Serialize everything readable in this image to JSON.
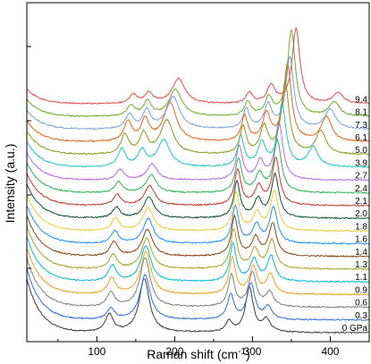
{
  "chart_data": {
    "type": "line",
    "title": "",
    "xlabel": "Raman shift (cm",
    "xlabel_sup": "-1",
    "xlabel_close": ")",
    "ylabel": "Intensity (a.u.)",
    "xlim": [
      10,
      450
    ],
    "x_ticks": [
      100,
      200,
      300,
      400
    ],
    "x_tick_labels": [
      "100",
      "200",
      "300",
      "400"
    ],
    "grid": false,
    "series": [
      {
        "name": "0 GPa",
        "color": "#3c3c3c",
        "offset": 0,
        "peaks": [
          [
            116,
            20,
            6
          ],
          [
            161,
            60,
            8
          ],
          [
            270,
            12,
            5
          ],
          [
            296,
            50,
            6
          ],
          [
            318,
            14,
            6
          ]
        ]
      },
      {
        "name": "0.3",
        "color": "#2f6fd6",
        "offset": 1,
        "peaks": [
          [
            118,
            12,
            6
          ],
          [
            162,
            50,
            8
          ],
          [
            272,
            28,
            5
          ],
          [
            298,
            40,
            6
          ],
          [
            320,
            14,
            6
          ]
        ]
      },
      {
        "name": "0.6",
        "color": "#7f7f7f",
        "offset": 2,
        "peaks": [
          [
            118,
            16,
            6
          ],
          [
            162,
            55,
            8
          ],
          [
            273,
            35,
            5
          ],
          [
            300,
            38,
            6
          ],
          [
            322,
            16,
            6
          ]
        ]
      },
      {
        "name": "0.9",
        "color": "#e8a317",
        "offset": 3,
        "peaks": [
          [
            119,
            18,
            6
          ],
          [
            163,
            48,
            8
          ],
          [
            274,
            40,
            5
          ],
          [
            301,
            30,
            6
          ],
          [
            323,
            22,
            6
          ]
        ]
      },
      {
        "name": "1.1",
        "color": "#00bcd4",
        "offset": 4,
        "peaks": [
          [
            120,
            18,
            6
          ],
          [
            163,
            40,
            8
          ],
          [
            275,
            42,
            5
          ],
          [
            302,
            24,
            6
          ],
          [
            324,
            28,
            6
          ]
        ]
      },
      {
        "name": "1.3",
        "color": "#a3a329",
        "offset": 5,
        "peaks": [
          [
            121,
            16,
            6
          ],
          [
            164,
            34,
            8
          ],
          [
            276,
            44,
            5
          ],
          [
            303,
            22,
            6
          ],
          [
            325,
            32,
            6
          ]
        ]
      },
      {
        "name": "1.4",
        "color": "#8b4513",
        "offset": 6,
        "peaks": [
          [
            122,
            16,
            6
          ],
          [
            165,
            30,
            8
          ],
          [
            277,
            44,
            5
          ],
          [
            304,
            20,
            6
          ],
          [
            326,
            36,
            6
          ]
        ]
      },
      {
        "name": "1.6",
        "color": "#1e90ff",
        "offset": 7,
        "peaks": [
          [
            123,
            14,
            6
          ],
          [
            166,
            28,
            8
          ],
          [
            278,
            42,
            5
          ],
          [
            305,
            20,
            6
          ],
          [
            327,
            40,
            6
          ]
        ]
      },
      {
        "name": "1.8",
        "color": "#e9cc34",
        "offset": 8,
        "peaks": [
          [
            124,
            14,
            6
          ],
          [
            166,
            26,
            8
          ],
          [
            279,
            42,
            5
          ],
          [
            306,
            20,
            6
          ],
          [
            328,
            44,
            6
          ]
        ]
      },
      {
        "name": "2.0",
        "color": "#0f5132",
        "offset": 9,
        "peaks": [
          [
            125,
            12,
            6
          ],
          [
            167,
            24,
            8
          ],
          [
            280,
            40,
            5
          ],
          [
            307,
            20,
            6
          ],
          [
            329,
            48,
            6
          ]
        ]
      },
      {
        "name": "2.1",
        "color": "#c0392b",
        "offset": 10,
        "peaks": [
          [
            126,
            12,
            6
          ],
          [
            168,
            22,
            8
          ],
          [
            281,
            40,
            5
          ],
          [
            308,
            20,
            6
          ],
          [
            330,
            52,
            6
          ]
        ]
      },
      {
        "name": "2.4",
        "color": "#2fb35a",
        "offset": 11,
        "peaks": [
          [
            128,
            12,
            6
          ],
          [
            170,
            20,
            8
          ],
          [
            282,
            38,
            5
          ],
          [
            309,
            20,
            6
          ],
          [
            332,
            58,
            6
          ]
        ]
      },
      {
        "name": "2.7",
        "color": "#b56ce0",
        "offset": 12,
        "peaks": [
          [
            130,
            12,
            6
          ],
          [
            171,
            18,
            8
          ],
          [
            283,
            38,
            5
          ],
          [
            310,
            20,
            6
          ],
          [
            334,
            64,
            6
          ]
        ]
      },
      {
        "name": "3.9",
        "color": "#1cc7c7",
        "offset": 13,
        "peaks": [
          [
            132,
            20,
            6
          ],
          [
            158,
            18,
            6
          ],
          [
            186,
            30,
            10
          ],
          [
            285,
            34,
            5
          ],
          [
            312,
            26,
            6
          ],
          [
            338,
            70,
            6
          ],
          [
            378,
            22,
            8
          ]
        ]
      },
      {
        "name": "5.0",
        "color": "#8a9a1a",
        "offset": 14,
        "peaks": [
          [
            136,
            22,
            6
          ],
          [
            160,
            22,
            6
          ],
          [
            190,
            38,
            10
          ],
          [
            288,
            30,
            5
          ],
          [
            315,
            30,
            6
          ],
          [
            342,
            80,
            6
          ],
          [
            388,
            26,
            8
          ]
        ]
      },
      {
        "name": "6.1",
        "color": "#e8651a",
        "offset": 15,
        "peaks": [
          [
            140,
            22,
            6
          ],
          [
            162,
            24,
            6
          ],
          [
            194,
            44,
            10
          ],
          [
            290,
            28,
            5
          ],
          [
            318,
            30,
            6
          ],
          [
            345,
            86,
            6
          ],
          [
            395,
            28,
            8
          ]
        ]
      },
      {
        "name": "7.3",
        "color": "#7aa0d4",
        "offset": 16,
        "peaks": [
          [
            142,
            16,
            6
          ],
          [
            164,
            20,
            6
          ],
          [
            198,
            36,
            10
          ],
          [
            292,
            22,
            5
          ],
          [
            320,
            26,
            6
          ],
          [
            348,
            80,
            6
          ],
          [
            400,
            22,
            8
          ]
        ]
      },
      {
        "name": "8.1",
        "color": "#6cb02b",
        "offset": 17,
        "peaks": [
          [
            144,
            12,
            6
          ],
          [
            165,
            16,
            6
          ],
          [
            201,
            30,
            10
          ],
          [
            294,
            16,
            5
          ],
          [
            321,
            20,
            6
          ],
          [
            350,
            96,
            6
          ],
          [
            405,
            16,
            8
          ]
        ]
      },
      {
        "name": "9.4",
        "color": "#e84c4c",
        "offset": 18,
        "peaks": [
          [
            147,
            10,
            6
          ],
          [
            167,
            12,
            6
          ],
          [
            205,
            28,
            10
          ],
          [
            296,
            12,
            5
          ],
          [
            324,
            20,
            6
          ],
          [
            356,
            84,
            6
          ],
          [
            410,
            12,
            8
          ]
        ]
      }
    ]
  }
}
